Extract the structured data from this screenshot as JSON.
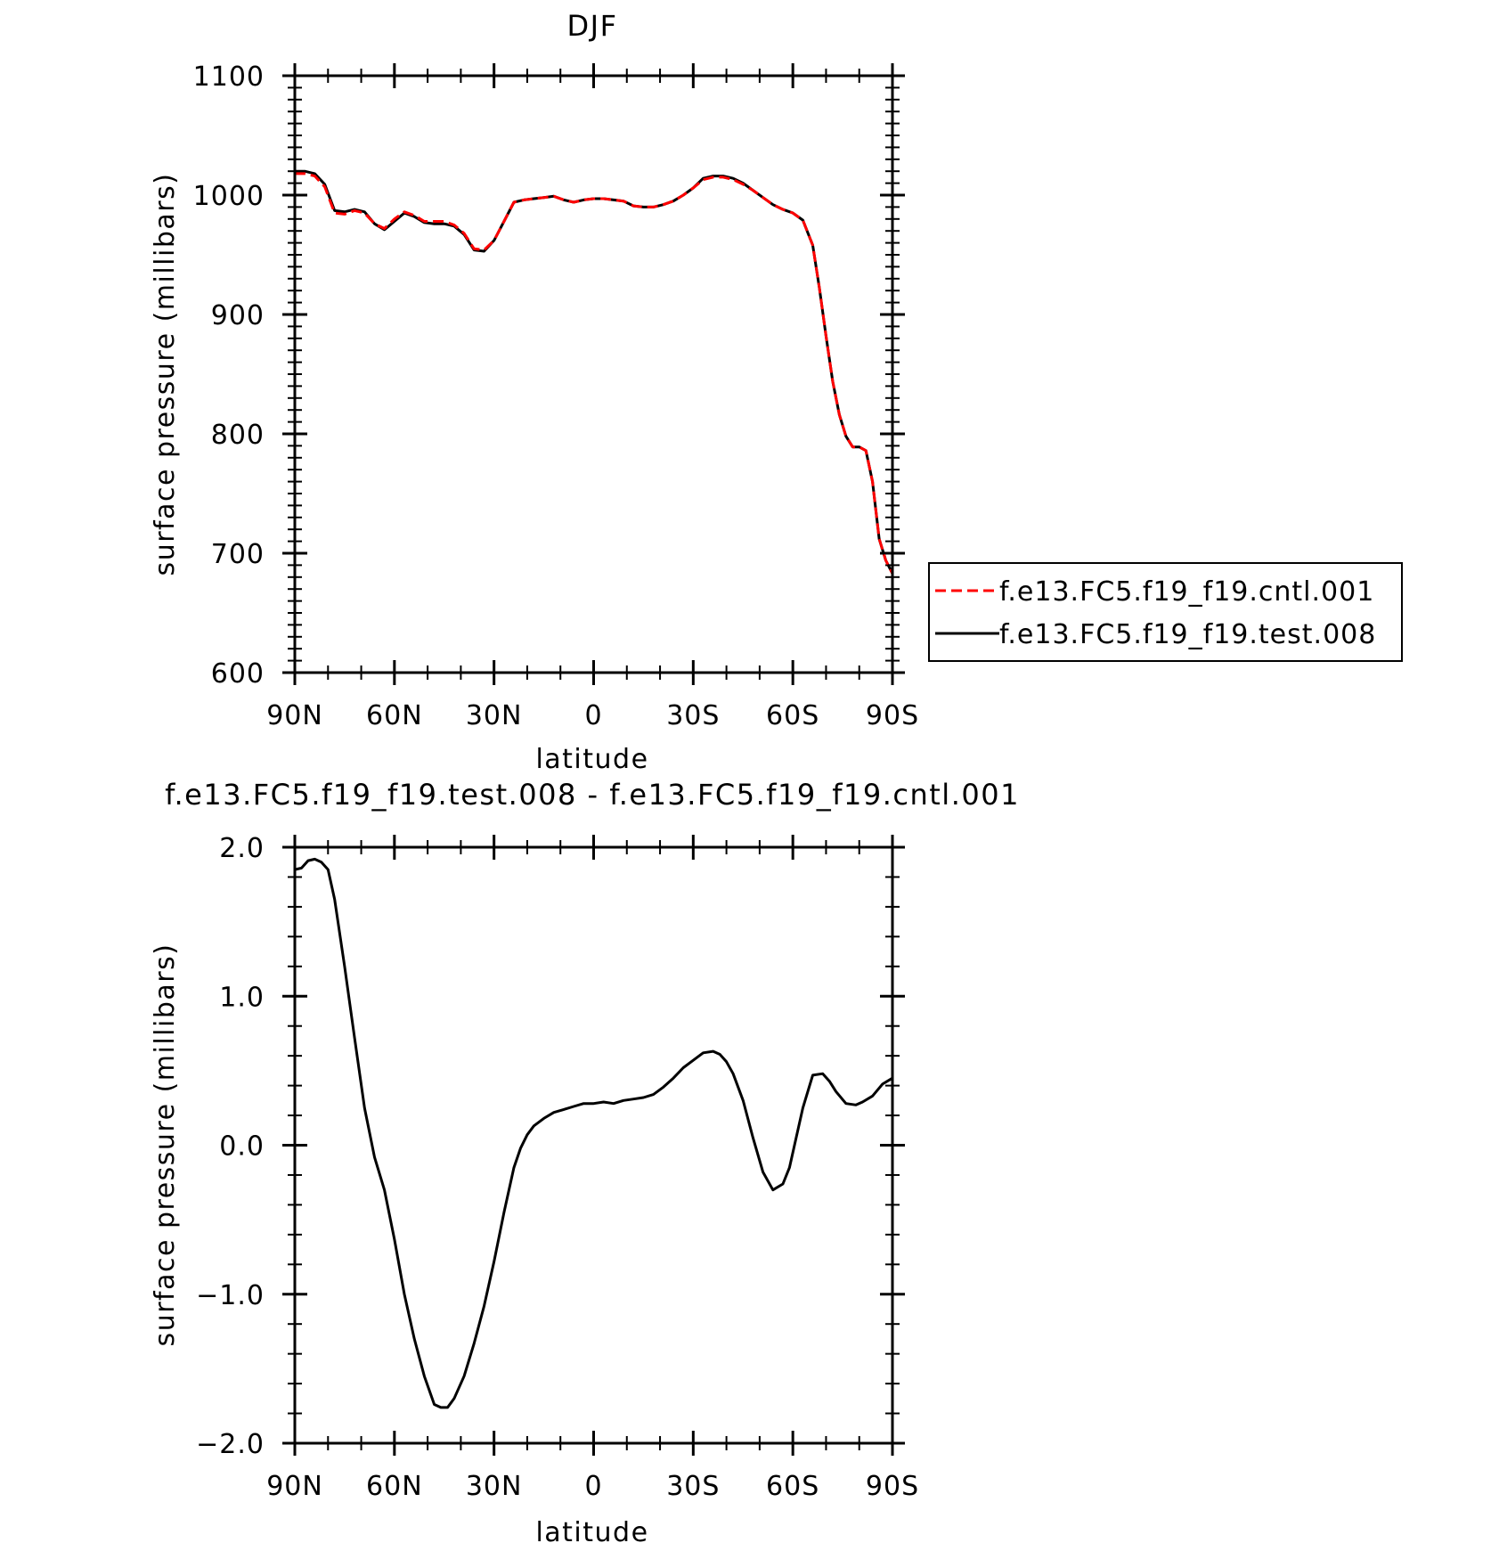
{
  "colors": {
    "cntl": "#ff0000",
    "test": "#000000",
    "axes": "#000000",
    "background": "#ffffff"
  },
  "chart_data": [
    {
      "type": "line",
      "title": "DJF",
      "xlabel": "latitude",
      "ylabel": "surface pressure (millibars)",
      "x_ticks": [
        {
          "value": 90,
          "label": "90N"
        },
        {
          "value": 60,
          "label": "60N"
        },
        {
          "value": 30,
          "label": "30N"
        },
        {
          "value": 0,
          "label": "0"
        },
        {
          "value": -30,
          "label": "30S"
        },
        {
          "value": -60,
          "label": "60S"
        },
        {
          "value": -90,
          "label": "90S"
        }
      ],
      "y_ticks": [
        {
          "value": 1100,
          "label": "1100"
        },
        {
          "value": 1000,
          "label": "1000"
        },
        {
          "value": 900,
          "label": "900"
        },
        {
          "value": 800,
          "label": "800"
        },
        {
          "value": 700,
          "label": "700"
        },
        {
          "value": 600,
          "label": "600"
        }
      ],
      "xlim": [
        90,
        -90
      ],
      "ylim": [
        600,
        1100
      ],
      "grid": false,
      "legend_position": "right",
      "series": [
        {
          "name": "f.e13.FC5.f19_f19.cntl.001",
          "style": "dashed",
          "color": "#ff0000",
          "x": [
            90,
            87,
            84,
            81,
            78,
            75,
            72,
            69,
            66,
            63,
            60,
            57,
            54,
            51,
            48,
            45,
            42,
            39,
            36,
            33,
            30,
            27,
            24,
            21,
            18,
            15,
            12,
            9,
            6,
            3,
            0,
            -3,
            -6,
            -9,
            -12,
            -15,
            -18,
            -21,
            -24,
            -27,
            -30,
            -33,
            -36,
            -39,
            -42,
            -45,
            -48,
            -51,
            -54,
            -57,
            -60,
            -63,
            -66,
            -68,
            -70,
            -72,
            -74,
            -76,
            -78,
            -80,
            -82,
            -84,
            -86,
            -88,
            -90
          ],
          "values": [
            1018,
            1018,
            1016,
            1007,
            985,
            984,
            987,
            985,
            976,
            972,
            980,
            986,
            983,
            978,
            978,
            978,
            975,
            968,
            955,
            954,
            962,
            978,
            994,
            996,
            997,
            998,
            999,
            996,
            994,
            996,
            997,
            997,
            996,
            995,
            991,
            990,
            990,
            992,
            995,
            1000,
            1006,
            1013,
            1015,
            1015,
            1013,
            1009,
            1004,
            998,
            992,
            988,
            985,
            979,
            958,
            922,
            882,
            844,
            816,
            798,
            789,
            789,
            786,
            760,
            712,
            694,
            683
          ]
        },
        {
          "name": "f.e13.FC5.f19_f19.test.008",
          "style": "solid",
          "color": "#000000",
          "x": [
            90,
            87,
            84,
            81,
            78,
            75,
            72,
            69,
            66,
            63,
            60,
            57,
            54,
            51,
            48,
            45,
            42,
            39,
            36,
            33,
            30,
            27,
            24,
            21,
            18,
            15,
            12,
            9,
            6,
            3,
            0,
            -3,
            -6,
            -9,
            -12,
            -15,
            -18,
            -21,
            -24,
            -27,
            -30,
            -33,
            -36,
            -39,
            -42,
            -45,
            -48,
            -51,
            -54,
            -57,
            -60,
            -63,
            -66,
            -68,
            -70,
            -72,
            -74,
            -76,
            -78,
            -80,
            -82,
            -84,
            -86,
            -88,
            -90
          ],
          "values": [
            1020,
            1020,
            1018,
            1009,
            987,
            986,
            988,
            986,
            976,
            971,
            978,
            985,
            982,
            977,
            976,
            976,
            974,
            967,
            954,
            953,
            962,
            978,
            994,
            996,
            997,
            998,
            999,
            996,
            994,
            996,
            997,
            997,
            996,
            995,
            991,
            990,
            990,
            992,
            995,
            1000,
            1006,
            1014,
            1016,
            1016,
            1014,
            1010,
            1004,
            998,
            992,
            988,
            985,
            979,
            958,
            922,
            882,
            844,
            816,
            798,
            789,
            789,
            786,
            760,
            712,
            694,
            683
          ]
        }
      ]
    },
    {
      "type": "line",
      "title": "f.e13.FC5.f19_f19.test.008 - f.e13.FC5.f19_f19.cntl.001",
      "xlabel": "latitude",
      "ylabel": "surface pressure (millibars)",
      "x_ticks": [
        {
          "value": 90,
          "label": "90N"
        },
        {
          "value": 60,
          "label": "60N"
        },
        {
          "value": 30,
          "label": "30N"
        },
        {
          "value": 0,
          "label": "0"
        },
        {
          "value": -30,
          "label": "30S"
        },
        {
          "value": -60,
          "label": "60S"
        },
        {
          "value": -90,
          "label": "90S"
        }
      ],
      "y_ticks": [
        {
          "value": 2,
          "label": "2.0"
        },
        {
          "value": 1,
          "label": "1.0"
        },
        {
          "value": 0,
          "label": "0.0"
        },
        {
          "value": -1,
          "label": "-1.0"
        },
        {
          "value": -2,
          "label": "-2.0"
        }
      ],
      "xlim": [
        90,
        -90
      ],
      "ylim": [
        -2,
        2
      ],
      "grid": false,
      "series": [
        {
          "color": "#000000",
          "style": "solid",
          "x": [
            90,
            88,
            86,
            84,
            82,
            80,
            78,
            75,
            72,
            69,
            66,
            63,
            60,
            57,
            54,
            51,
            48,
            46,
            44,
            42,
            39,
            36,
            33,
            30,
            27,
            24,
            22,
            20,
            18,
            15,
            12,
            9,
            6,
            3,
            0,
            -3,
            -6,
            -9,
            -12,
            -15,
            -18,
            -21,
            -24,
            -27,
            -30,
            -33,
            -36,
            -38,
            -40,
            -42,
            -45,
            -48,
            -51,
            -54,
            -57,
            -59,
            -61,
            -63,
            -66,
            -69,
            -71,
            -73,
            -76,
            -79,
            -81,
            -84,
            -87,
            -90
          ],
          "values": [
            1.85,
            1.86,
            1.91,
            1.92,
            1.9,
            1.85,
            1.65,
            1.2,
            0.72,
            0.25,
            -0.08,
            -0.3,
            -0.63,
            -1.0,
            -1.3,
            -1.55,
            -1.74,
            -1.76,
            -1.76,
            -1.7,
            -1.55,
            -1.33,
            -1.08,
            -0.78,
            -0.45,
            -0.15,
            -0.02,
            0.07,
            0.13,
            0.18,
            0.22,
            0.24,
            0.26,
            0.28,
            0.28,
            0.29,
            0.28,
            0.3,
            0.31,
            0.32,
            0.34,
            0.39,
            0.45,
            0.52,
            0.57,
            0.62,
            0.63,
            0.61,
            0.56,
            0.48,
            0.3,
            0.05,
            -0.18,
            -0.3,
            -0.26,
            -0.15,
            0.05,
            0.25,
            0.47,
            0.48,
            0.43,
            0.36,
            0.28,
            0.27,
            0.29,
            0.33,
            0.41,
            0.45
          ]
        }
      ]
    }
  ]
}
